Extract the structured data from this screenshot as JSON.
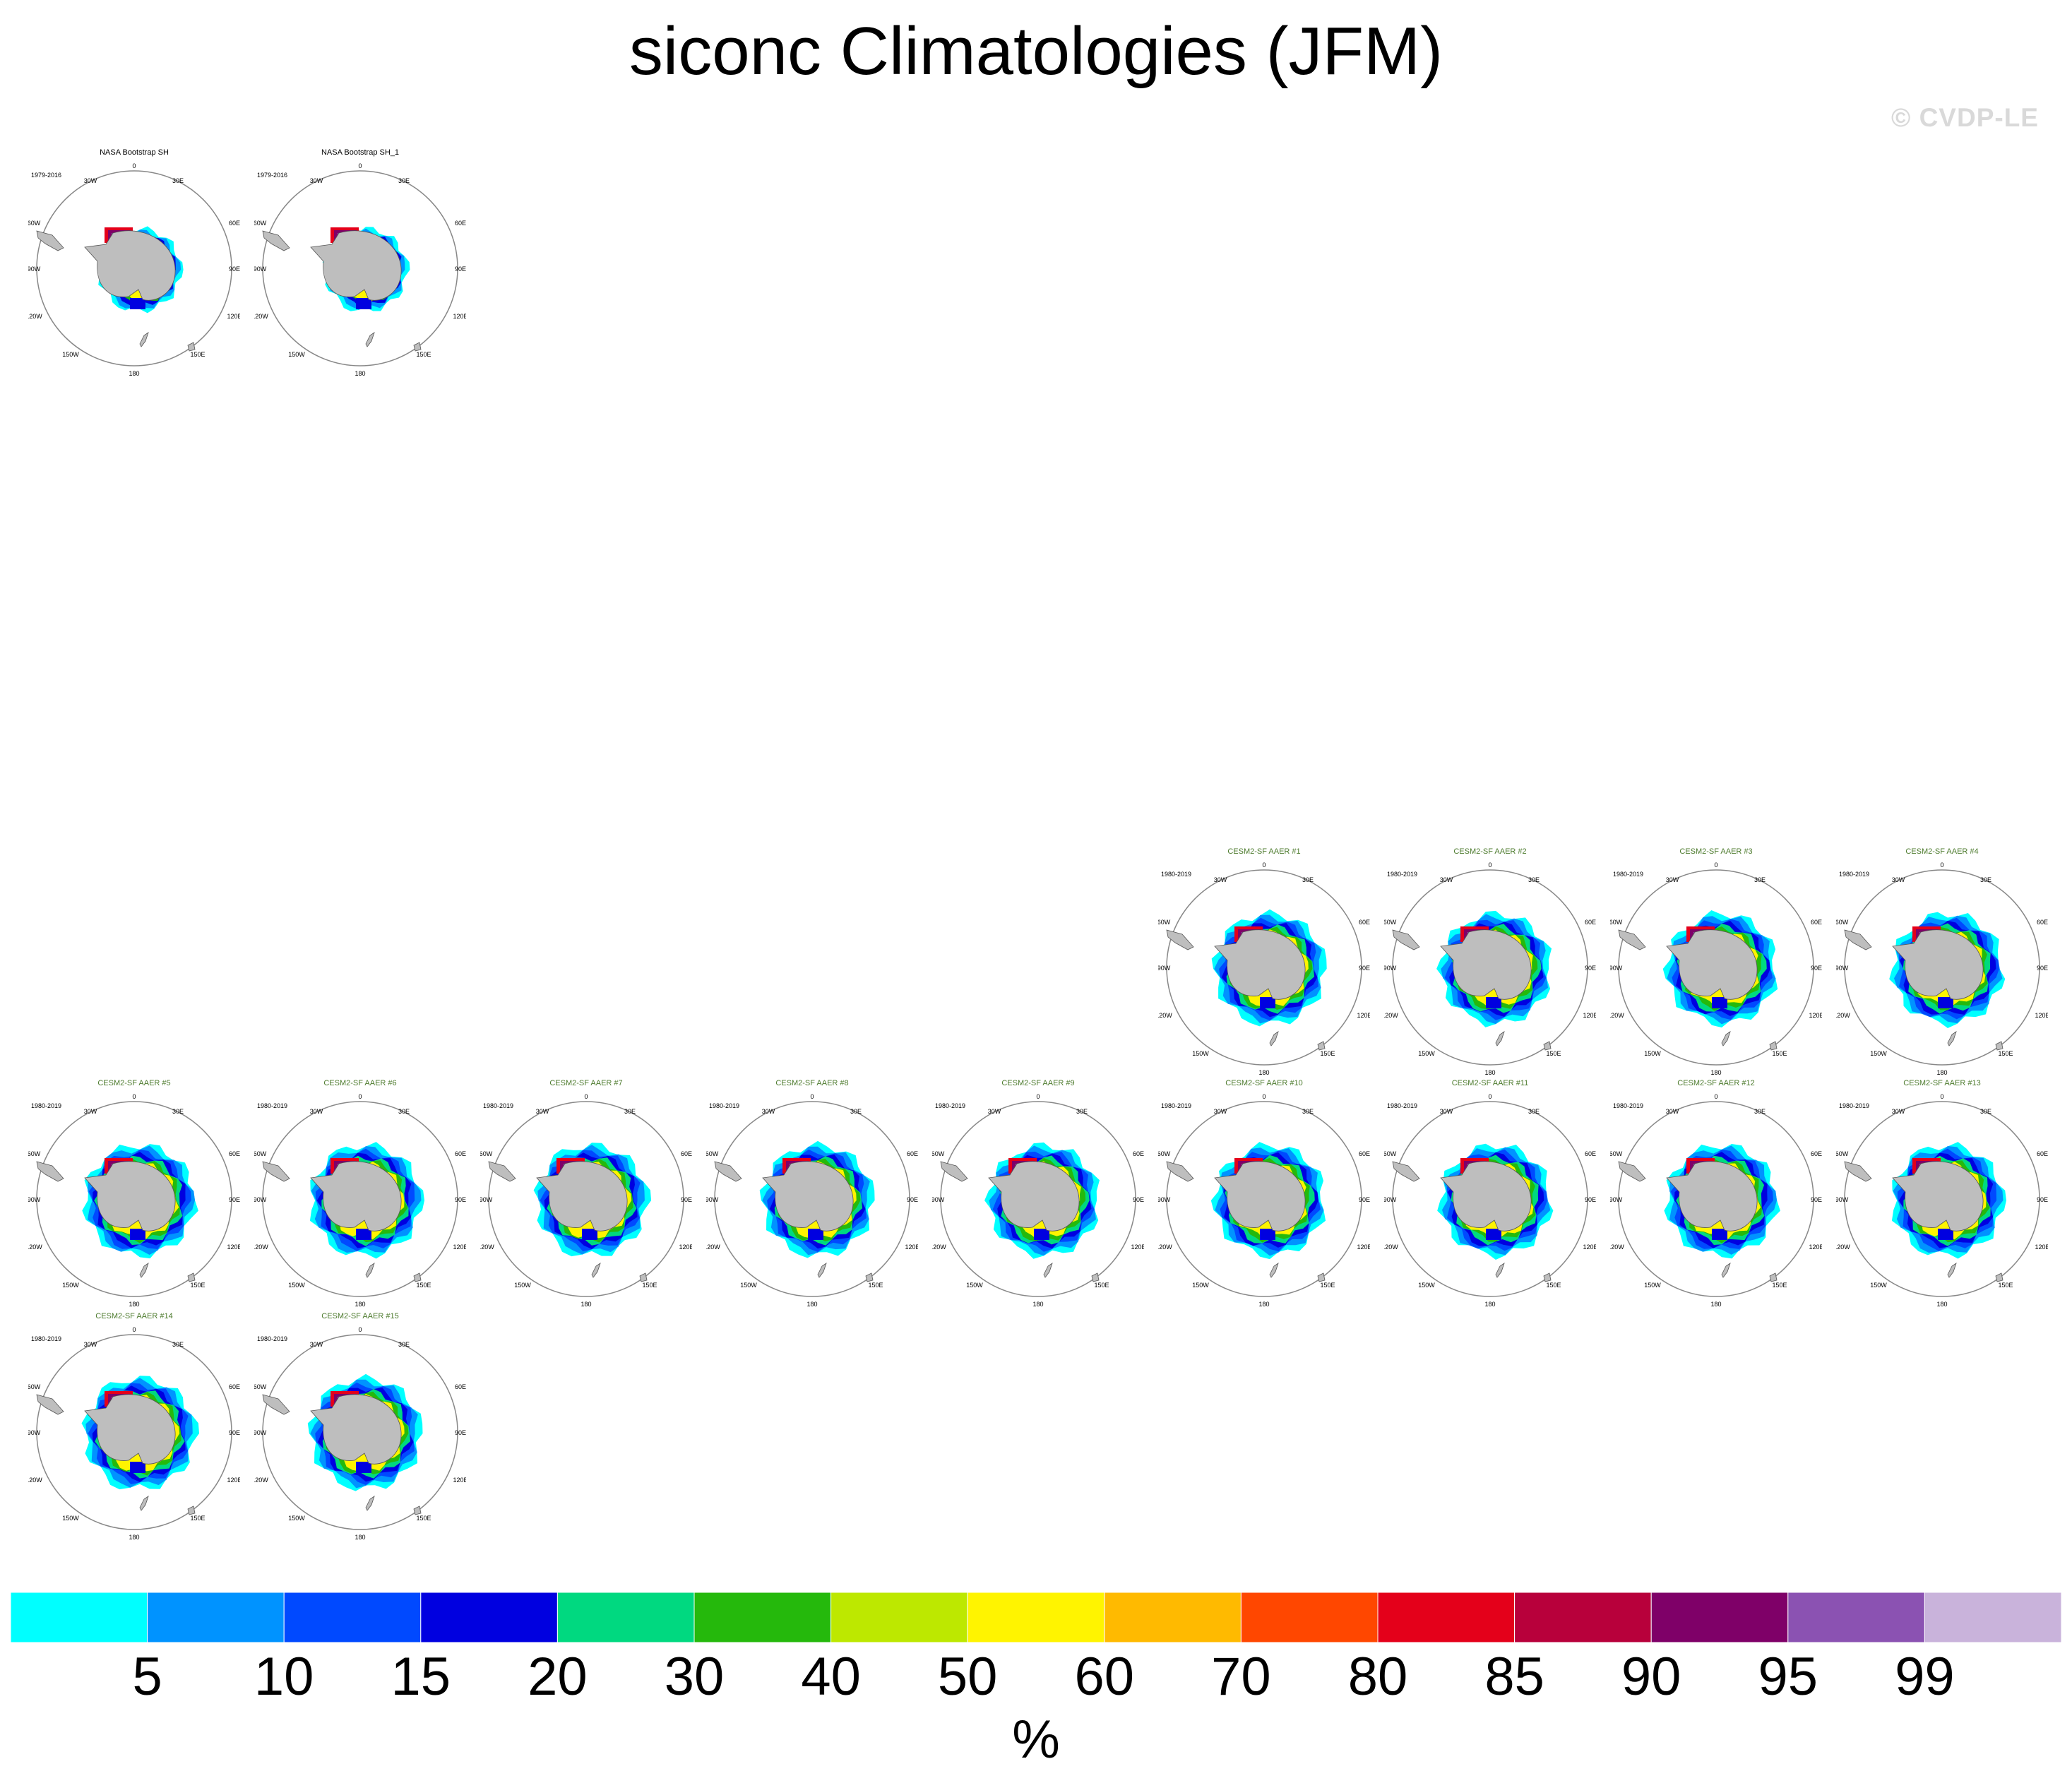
{
  "title": "siconc Climatologies (JFM)",
  "watermark": "© CVDP-LE",
  "units": "%",
  "colors": {
    "land": "#bebebe",
    "coast": "#555555",
    "ring": "#888888",
    "obs_title": "#000000",
    "model_title": "#4c7a2c"
  },
  "axis_labels": {
    "top": "0",
    "lon_30W": "30W",
    "lon_30E": "30E",
    "lon_60W": "60W",
    "lon_60E": "60E",
    "lon_90W": "90W",
    "lon_90E": "90E",
    "lon_120W": "120W",
    "lon_120E": "120E",
    "lon_150W": "150W",
    "lon_150E": "150E",
    "bottom": "180"
  },
  "colorbar": {
    "levels": [
      "5",
      "10",
      "15",
      "20",
      "30",
      "40",
      "50",
      "60",
      "70",
      "80",
      "85",
      "90",
      "95",
      "99"
    ],
    "colors": [
      "#00ffff",
      "#0093ff",
      "#0049ff",
      "#0000e0",
      "#00d980",
      "#25b90c",
      "#bde800",
      "#fff400",
      "#ffba00",
      "#ff4700",
      "#e4001a",
      "#b8003b",
      "#7f0068",
      "#8b52b2",
      "#c9b3db"
    ]
  },
  "panels": [
    {
      "title": "NASA Bootstrap SH",
      "period": "1979-2016",
      "kind": "obs"
    },
    {
      "title": "NASA Bootstrap SH_1",
      "period": "1979-2016",
      "kind": "obs"
    },
    {
      "title": "CESM2-SF AAER #1",
      "period": "1980-2019",
      "kind": "model"
    },
    {
      "title": "CESM2-SF AAER #2",
      "period": "1980-2019",
      "kind": "model"
    },
    {
      "title": "CESM2-SF AAER #3",
      "period": "1980-2019",
      "kind": "model"
    },
    {
      "title": "CESM2-SF AAER #4",
      "period": "1980-2019",
      "kind": "model"
    },
    {
      "title": "CESM2-SF AAER #5",
      "period": "1980-2019",
      "kind": "model"
    },
    {
      "title": "CESM2-SF AAER #6",
      "period": "1980-2019",
      "kind": "model"
    },
    {
      "title": "CESM2-SF AAER #7",
      "period": "1980-2019",
      "kind": "model"
    },
    {
      "title": "CESM2-SF AAER #8",
      "period": "1980-2019",
      "kind": "model"
    },
    {
      "title": "CESM2-SF AAER #9",
      "period": "1980-2019",
      "kind": "model"
    },
    {
      "title": "CESM2-SF AAER #10",
      "period": "1980-2019",
      "kind": "model"
    },
    {
      "title": "CESM2-SF AAER #11",
      "period": "1980-2019",
      "kind": "model"
    },
    {
      "title": "CESM2-SF AAER #12",
      "period": "1980-2019",
      "kind": "model"
    },
    {
      "title": "CESM2-SF AAER #13",
      "period": "1980-2019",
      "kind": "model"
    },
    {
      "title": "CESM2-SF AAER #14",
      "period": "1980-2019",
      "kind": "model"
    },
    {
      "title": "CESM2-SF AAER #15",
      "period": "1980-2019",
      "kind": "model"
    }
  ]
}
